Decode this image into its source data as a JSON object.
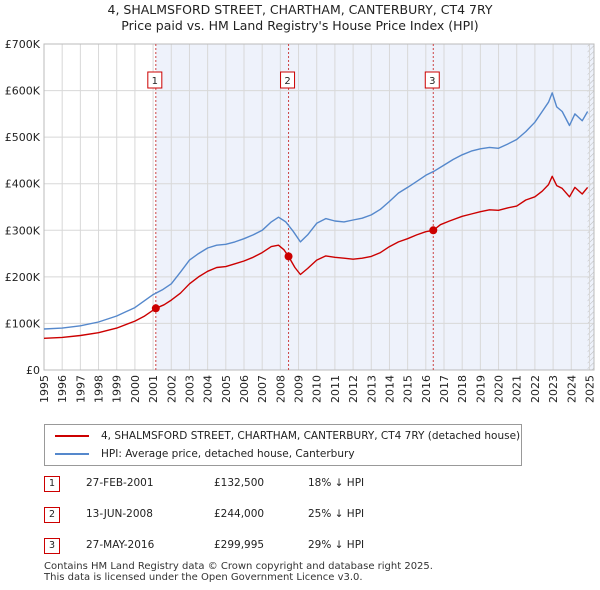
{
  "chart_data": {
    "type": "line",
    "title": "4, SHALMSFORD STREET, CHARTHAM, CANTERBURY, CT4 7RY",
    "subtitle": "Price paid vs. HM Land Registry's House Price Index (HPI)",
    "xlabel": "",
    "ylabel": "",
    "xlim": [
      1995,
      2025.25
    ],
    "ylim": [
      0,
      700000
    ],
    "grid": true,
    "x_ticks": [
      1995,
      1996,
      1997,
      1998,
      1999,
      2000,
      2001,
      2002,
      2003,
      2004,
      2005,
      2006,
      2007,
      2008,
      2009,
      2010,
      2011,
      2012,
      2013,
      2014,
      2015,
      2016,
      2017,
      2018,
      2019,
      2020,
      2021,
      2022,
      2023,
      2024,
      2025
    ],
    "x_tick_labels": [
      "1995",
      "1996",
      "1997",
      "1998",
      "1999",
      "2000",
      "2001",
      "2002",
      "2003",
      "2004",
      "2005",
      "2006",
      "2007",
      "2008",
      "2009",
      "2010",
      "2011",
      "2012",
      "2013",
      "2014",
      "2015",
      "2016",
      "2017",
      "2018",
      "2019",
      "2020",
      "2021",
      "2022",
      "2023",
      "2024",
      "2025"
    ],
    "y_ticks": [
      0,
      100000,
      200000,
      300000,
      400000,
      500000,
      600000,
      700000
    ],
    "y_tick_labels": [
      "£0",
      "£100K",
      "£200K",
      "£300K",
      "£400K",
      "£500K",
      "£600K",
      "£700K"
    ],
    "shaded_region": [
      2001.15,
      2025.25
    ],
    "hatch_after": 2024.9,
    "series": [
      {
        "name": "4, SHALMSFORD STREET, CHARTHAM, CANTERBURY, CT4 7RY (detached house)",
        "color": "#cc0000",
        "x": [
          1995,
          1996,
          1997,
          1998,
          1999,
          2000,
          2000.5,
          2001.15,
          2001.6,
          2002,
          2002.5,
          2003,
          2003.5,
          2004,
          2004.5,
          2005,
          2005.5,
          2006,
          2006.5,
          2007,
          2007.5,
          2007.9,
          2008.2,
          2008.45,
          2008.8,
          2009.1,
          2009.5,
          2010,
          2010.5,
          2011,
          2011.5,
          2012,
          2012.5,
          2013,
          2013.5,
          2014,
          2014.5,
          2015,
          2015.5,
          2016,
          2016.41,
          2016.8,
          2017.3,
          2018,
          2018.5,
          2019,
          2019.5,
          2020,
          2020.5,
          2021,
          2021.5,
          2022,
          2022.4,
          2022.75,
          2022.95,
          2023.2,
          2023.5,
          2023.9,
          2024.2,
          2024.6,
          2024.9
        ],
        "values": [
          68000,
          70000,
          74000,
          80000,
          90000,
          105000,
          115000,
          132500,
          140000,
          150000,
          165000,
          185000,
          200000,
          212000,
          220000,
          222000,
          228000,
          234000,
          242000,
          252000,
          265000,
          268000,
          258000,
          244000,
          220000,
          205000,
          218000,
          236000,
          245000,
          242000,
          240000,
          238000,
          240000,
          244000,
          252000,
          265000,
          275000,
          282000,
          290000,
          297000,
          299995,
          312000,
          320000,
          330000,
          335000,
          340000,
          344000,
          343000,
          348000,
          352000,
          365000,
          372000,
          384000,
          398000,
          416000,
          396000,
          390000,
          372000,
          392000,
          378000,
          392000
        ]
      },
      {
        "name": "HPI: Average price, detached house, Canterbury",
        "color": "#5588cc",
        "x": [
          1995,
          1996,
          1997,
          1998,
          1999,
          2000,
          2000.5,
          2001,
          2001.5,
          2002,
          2002.5,
          2003,
          2003.5,
          2004,
          2004.5,
          2005,
          2005.5,
          2006,
          2006.5,
          2007,
          2007.5,
          2007.9,
          2008.3,
          2008.7,
          2009.1,
          2009.5,
          2010,
          2010.5,
          2011,
          2011.5,
          2012,
          2012.5,
          2013,
          2013.5,
          2014,
          2014.5,
          2015,
          2015.5,
          2016,
          2016.5,
          2017,
          2017.5,
          2018,
          2018.5,
          2019,
          2019.5,
          2020,
          2020.5,
          2021,
          2021.5,
          2022,
          2022.4,
          2022.75,
          2022.95,
          2023.2,
          2023.5,
          2023.9,
          2024.2,
          2024.6,
          2024.9
        ],
        "values": [
          88000,
          90000,
          95000,
          103000,
          116000,
          134000,
          148000,
          162000,
          172000,
          185000,
          210000,
          236000,
          250000,
          262000,
          268000,
          270000,
          275000,
          282000,
          290000,
          300000,
          318000,
          328000,
          318000,
          298000,
          275000,
          290000,
          315000,
          325000,
          320000,
          318000,
          322000,
          326000,
          333000,
          345000,
          362000,
          380000,
          392000,
          405000,
          418000,
          428000,
          440000,
          452000,
          462000,
          470000,
          475000,
          478000,
          476000,
          485000,
          495000,
          512000,
          532000,
          555000,
          575000,
          595000,
          565000,
          555000,
          525000,
          550000,
          535000,
          555000
        ]
      }
    ],
    "sale_markers": [
      {
        "label": "1",
        "x": 2001.15,
        "value": 132500
      },
      {
        "label": "2",
        "x": 2008.45,
        "value": 244000
      },
      {
        "label": "3",
        "x": 2016.41,
        "value": 299995
      }
    ]
  },
  "legend": {
    "property_label": "4, SHALMSFORD STREET, CHARTHAM, CANTERBURY, CT4 7RY (detached house)",
    "hpi_label": "HPI: Average price, detached house, Canterbury",
    "property_color": "#cc0000",
    "hpi_color": "#5588cc"
  },
  "sales": [
    {
      "num": "1",
      "date": "27-FEB-2001",
      "price": "£132,500",
      "hpi": "18% ↓ HPI"
    },
    {
      "num": "2",
      "date": "13-JUN-2008",
      "price": "£244,000",
      "hpi": "25% ↓ HPI"
    },
    {
      "num": "3",
      "date": "27-MAY-2016",
      "price": "£299,995",
      "hpi": "29% ↓ HPI"
    }
  ],
  "footer": {
    "line1": "Contains HM Land Registry data © Crown copyright and database right 2025.",
    "line2": "This data is licensed under the Open Government Licence v3.0."
  }
}
